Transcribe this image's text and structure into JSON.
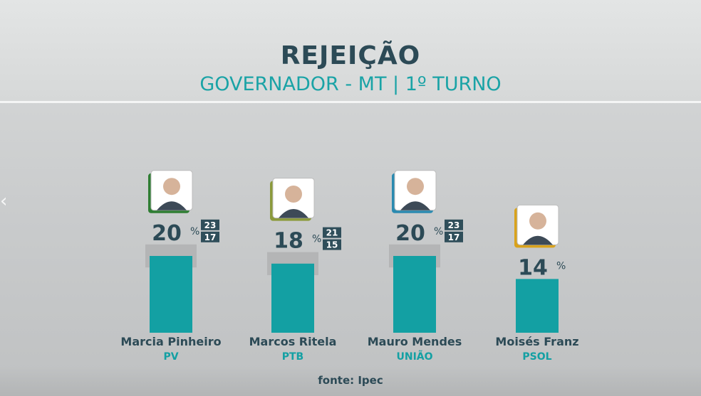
{
  "header": {
    "title": "REJEIÇÃO",
    "subtitle": "GOVERNADOR - MT | 1º TURNO"
  },
  "source": "fonte: Ipec",
  "colors": {
    "bar": "#13a0a3",
    "margin_band": "#b0b2b3",
    "title": "#2c4a56",
    "accent": "#1aa3a6",
    "range_box": "#2f4e5a"
  },
  "chart_data": {
    "type": "bar",
    "title": "REJEIÇÃO",
    "subtitle": "GOVERNADOR - MT | 1º TURNO",
    "categories": [
      "Marcia Pinheiro",
      "Marcos Ritela",
      "Mauro Mendes",
      "Moisés Franz"
    ],
    "parties": [
      "PV",
      "PTB",
      "UNIÃO",
      "PSOL"
    ],
    "values": [
      20,
      18,
      20,
      14
    ],
    "value_labels": [
      "20",
      "18",
      "20",
      "14"
    ],
    "unit": "%",
    "margin_high": [
      23,
      21,
      23,
      null
    ],
    "margin_low": [
      17,
      15,
      17,
      null
    ],
    "photo_accent": [
      "#2e7d32",
      "#8b9a3b",
      "#2a8ab0",
      "#d9a21b"
    ],
    "grid": false,
    "legend": "none"
  }
}
